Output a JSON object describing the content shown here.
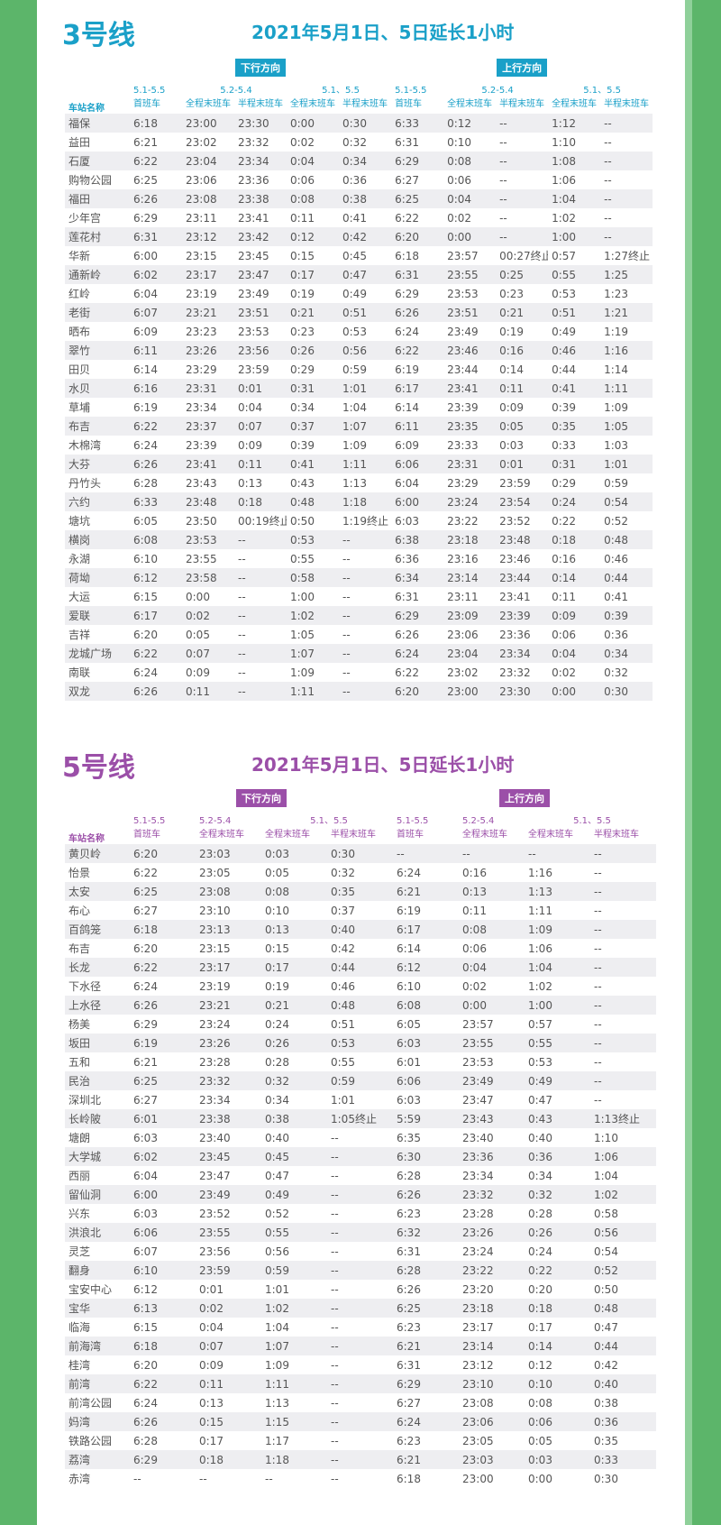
{
  "sections": [
    {
      "title": "3号线",
      "subtitle": "2021年5月1日、5日延长1小时",
      "directions": [
        "下行方向",
        "上行方向"
      ],
      "station_header": "车站名称",
      "periods": [
        "5.1-5.5",
        "5.2-5.4",
        "5.1、5.5",
        "5.1-5.5",
        "5.2-5.4",
        "5.1、5.5"
      ],
      "columns": [
        "首班车",
        "全程末班车",
        "半程末班车",
        "全程末班车",
        "半程末班车",
        "首班车",
        "全程末班车",
        "半程末班车",
        "全程末班车",
        "半程末班车"
      ],
      "rows": [
        [
          "福保",
          "6:18",
          "23:00",
          "23:30",
          "0:00",
          "0:30",
          "6:33",
          "0:12",
          "--",
          "1:12",
          "--"
        ],
        [
          "益田",
          "6:21",
          "23:02",
          "23:32",
          "0:02",
          "0:32",
          "6:31",
          "0:10",
          "--",
          "1:10",
          "--"
        ],
        [
          "石厦",
          "6:22",
          "23:04",
          "23:34",
          "0:04",
          "0:34",
          "6:29",
          "0:08",
          "--",
          "1:08",
          "--"
        ],
        [
          "购物公园",
          "6:25",
          "23:06",
          "23:36",
          "0:06",
          "0:36",
          "6:27",
          "0:06",
          "--",
          "1:06",
          "--"
        ],
        [
          "福田",
          "6:26",
          "23:08",
          "23:38",
          "0:08",
          "0:38",
          "6:25",
          "0:04",
          "--",
          "1:04",
          "--"
        ],
        [
          "少年宫",
          "6:29",
          "23:11",
          "23:41",
          "0:11",
          "0:41",
          "6:22",
          "0:02",
          "--",
          "1:02",
          "--"
        ],
        [
          "莲花村",
          "6:31",
          "23:12",
          "23:42",
          "0:12",
          "0:42",
          "6:20",
          "0:00",
          "--",
          "1:00",
          "--"
        ],
        [
          "华新",
          "6:00",
          "23:15",
          "23:45",
          "0:15",
          "0:45",
          "6:18",
          "23:57",
          "00:27终止",
          "0:57",
          "1:27终止"
        ],
        [
          "通新岭",
          "6:02",
          "23:17",
          "23:47",
          "0:17",
          "0:47",
          "6:31",
          "23:55",
          "0:25",
          "0:55",
          "1:25"
        ],
        [
          "红岭",
          "6:04",
          "23:19",
          "23:49",
          "0:19",
          "0:49",
          "6:29",
          "23:53",
          "0:23",
          "0:53",
          "1:23"
        ],
        [
          "老街",
          "6:07",
          "23:21",
          "23:51",
          "0:21",
          "0:51",
          "6:26",
          "23:51",
          "0:21",
          "0:51",
          "1:21"
        ],
        [
          "晒布",
          "6:09",
          "23:23",
          "23:53",
          "0:23",
          "0:53",
          "6:24",
          "23:49",
          "0:19",
          "0:49",
          "1:19"
        ],
        [
          "翠竹",
          "6:11",
          "23:26",
          "23:56",
          "0:26",
          "0:56",
          "6:22",
          "23:46",
          "0:16",
          "0:46",
          "1:16"
        ],
        [
          "田贝",
          "6:14",
          "23:29",
          "23:59",
          "0:29",
          "0:59",
          "6:19",
          "23:44",
          "0:14",
          "0:44",
          "1:14"
        ],
        [
          "水贝",
          "6:16",
          "23:31",
          "0:01",
          "0:31",
          "1:01",
          "6:17",
          "23:41",
          "0:11",
          "0:41",
          "1:11"
        ],
        [
          "草埔",
          "6:19",
          "23:34",
          "0:04",
          "0:34",
          "1:04",
          "6:14",
          "23:39",
          "0:09",
          "0:39",
          "1:09"
        ],
        [
          "布吉",
          "6:22",
          "23:37",
          "0:07",
          "0:37",
          "1:07",
          "6:11",
          "23:35",
          "0:05",
          "0:35",
          "1:05"
        ],
        [
          "木棉湾",
          "6:24",
          "23:39",
          "0:09",
          "0:39",
          "1:09",
          "6:09",
          "23:33",
          "0:03",
          "0:33",
          "1:03"
        ],
        [
          "大芬",
          "6:26",
          "23:41",
          "0:11",
          "0:41",
          "1:11",
          "6:06",
          "23:31",
          "0:01",
          "0:31",
          "1:01"
        ],
        [
          "丹竹头",
          "6:28",
          "23:43",
          "0:13",
          "0:43",
          "1:13",
          "6:04",
          "23:29",
          "23:59",
          "0:29",
          "0:59"
        ],
        [
          "六约",
          "6:33",
          "23:48",
          "0:18",
          "0:48",
          "1:18",
          "6:00",
          "23:24",
          "23:54",
          "0:24",
          "0:54"
        ],
        [
          "塘坑",
          "6:05",
          "23:50",
          "00:19终止",
          "0:50",
          "1:19终止",
          "6:03",
          "23:22",
          "23:52",
          "0:22",
          "0:52"
        ],
        [
          "横岗",
          "6:08",
          "23:53",
          "--",
          "0:53",
          "--",
          "6:38",
          "23:18",
          "23:48",
          "0:18",
          "0:48"
        ],
        [
          "永湖",
          "6:10",
          "23:55",
          "--",
          "0:55",
          "--",
          "6:36",
          "23:16",
          "23:46",
          "0:16",
          "0:46"
        ],
        [
          "荷坳",
          "6:12",
          "23:58",
          "--",
          "0:58",
          "--",
          "6:34",
          "23:14",
          "23:44",
          "0:14",
          "0:44"
        ],
        [
          "大运",
          "6:15",
          "0:00",
          "--",
          "1:00",
          "--",
          "6:31",
          "23:11",
          "23:41",
          "0:11",
          "0:41"
        ],
        [
          "爱联",
          "6:17",
          "0:02",
          "--",
          "1:02",
          "--",
          "6:29",
          "23:09",
          "23:39",
          "0:09",
          "0:39"
        ],
        [
          "吉祥",
          "6:20",
          "0:05",
          "--",
          "1:05",
          "--",
          "6:26",
          "23:06",
          "23:36",
          "0:06",
          "0:36"
        ],
        [
          "龙城广场",
          "6:22",
          "0:07",
          "--",
          "1:07",
          "--",
          "6:24",
          "23:04",
          "23:34",
          "0:04",
          "0:34"
        ],
        [
          "南联",
          "6:24",
          "0:09",
          "--",
          "1:09",
          "--",
          "6:22",
          "23:02",
          "23:32",
          "0:02",
          "0:32"
        ],
        [
          "双龙",
          "6:26",
          "0:11",
          "--",
          "1:11",
          "--",
          "6:20",
          "23:00",
          "23:30",
          "0:00",
          "0:30"
        ]
      ]
    },
    {
      "title": "5号线",
      "subtitle": "2021年5月1日、5日延长1小时",
      "directions": [
        "下行方向",
        "上行方向"
      ],
      "station_header": "车站名称",
      "periods": [
        "5.1-5.5",
        "5.2-5.4",
        "5.1、5.5",
        "5.1-5.5",
        "5.2-5.4",
        "5.1、5.5"
      ],
      "columns": [
        "首班车",
        "全程末班车",
        "全程末班车",
        "半程末班车",
        "首班车",
        "全程末班车",
        "全程末班车",
        "半程末班车"
      ],
      "rows": [
        [
          "黄贝岭",
          "6:20",
          "23:03",
          "0:03",
          "0:30",
          "--",
          "--",
          "--",
          "--"
        ],
        [
          "怡景",
          "6:22",
          "23:05",
          "0:05",
          "0:32",
          "6:24",
          "0:16",
          "1:16",
          "--"
        ],
        [
          "太安",
          "6:25",
          "23:08",
          "0:08",
          "0:35",
          "6:21",
          "0:13",
          "1:13",
          "--"
        ],
        [
          "布心",
          "6:27",
          "23:10",
          "0:10",
          "0:37",
          "6:19",
          "0:11",
          "1:11",
          "--"
        ],
        [
          "百鸽笼",
          "6:18",
          "23:13",
          "0:13",
          "0:40",
          "6:17",
          "0:08",
          "1:09",
          "--"
        ],
        [
          "布吉",
          "6:20",
          "23:15",
          "0:15",
          "0:42",
          "6:14",
          "0:06",
          "1:06",
          "--"
        ],
        [
          "长龙",
          "6:22",
          "23:17",
          "0:17",
          "0:44",
          "6:12",
          "0:04",
          "1:04",
          "--"
        ],
        [
          "下水径",
          "6:24",
          "23:19",
          "0:19",
          "0:46",
          "6:10",
          "0:02",
          "1:02",
          "--"
        ],
        [
          "上水径",
          "6:26",
          "23:21",
          "0:21",
          "0:48",
          "6:08",
          "0:00",
          "1:00",
          "--"
        ],
        [
          "杨美",
          "6:29",
          "23:24",
          "0:24",
          "0:51",
          "6:05",
          "23:57",
          "0:57",
          "--"
        ],
        [
          "坂田",
          "6:19",
          "23:26",
          "0:26",
          "0:53",
          "6:03",
          "23:55",
          "0:55",
          "--"
        ],
        [
          "五和",
          "6:21",
          "23:28",
          "0:28",
          "0:55",
          "6:01",
          "23:53",
          "0:53",
          "--"
        ],
        [
          "民治",
          "6:25",
          "23:32",
          "0:32",
          "0:59",
          "6:06",
          "23:49",
          "0:49",
          "--"
        ],
        [
          "深圳北",
          "6:27",
          "23:34",
          "0:34",
          "1:01",
          "6:03",
          "23:47",
          "0:47",
          "--"
        ],
        [
          "长岭陂",
          "6:01",
          "23:38",
          "0:38",
          "1:05终止",
          "5:59",
          "23:43",
          "0:43",
          "1:13终止"
        ],
        [
          "塘朗",
          "6:03",
          "23:40",
          "0:40",
          "--",
          "6:35",
          "23:40",
          "0:40",
          "1:10"
        ],
        [
          "大学城",
          "6:02",
          "23:45",
          "0:45",
          "--",
          "6:30",
          "23:36",
          "0:36",
          "1:06"
        ],
        [
          "西丽",
          "6:04",
          "23:47",
          "0:47",
          "--",
          "6:28",
          "23:34",
          "0:34",
          "1:04"
        ],
        [
          "留仙洞",
          "6:00",
          "23:49",
          "0:49",
          "--",
          "6:26",
          "23:32",
          "0:32",
          "1:02"
        ],
        [
          "兴东",
          "6:03",
          "23:52",
          "0:52",
          "--",
          "6:23",
          "23:28",
          "0:28",
          "0:58"
        ],
        [
          "洪浪北",
          "6:06",
          "23:55",
          "0:55",
          "--",
          "6:32",
          "23:26",
          "0:26",
          "0:56"
        ],
        [
          "灵芝",
          "6:07",
          "23:56",
          "0:56",
          "--",
          "6:31",
          "23:24",
          "0:24",
          "0:54"
        ],
        [
          "翻身",
          "6:10",
          "23:59",
          "0:59",
          "--",
          "6:28",
          "23:22",
          "0:22",
          "0:52"
        ],
        [
          "宝安中心",
          "6:12",
          "0:01",
          "1:01",
          "--",
          "6:26",
          "23:20",
          "0:20",
          "0:50"
        ],
        [
          "宝华",
          "6:13",
          "0:02",
          "1:02",
          "--",
          "6:25",
          "23:18",
          "0:18",
          "0:48"
        ],
        [
          "临海",
          "6:15",
          "0:04",
          "1:04",
          "--",
          "6:23",
          "23:17",
          "0:17",
          "0:47"
        ],
        [
          "前海湾",
          "6:18",
          "0:07",
          "1:07",
          "--",
          "6:21",
          "23:14",
          "0:14",
          "0:44"
        ],
        [
          "桂湾",
          "6:20",
          "0:09",
          "1:09",
          "--",
          "6:31",
          "23:12",
          "0:12",
          "0:42"
        ],
        [
          "前湾",
          "6:22",
          "0:11",
          "1:11",
          "--",
          "6:29",
          "23:10",
          "0:10",
          "0:40"
        ],
        [
          "前湾公园",
          "6:24",
          "0:13",
          "1:13",
          "--",
          "6:27",
          "23:08",
          "0:08",
          "0:38"
        ],
        [
          "妈湾",
          "6:26",
          "0:15",
          "1:15",
          "--",
          "6:24",
          "23:06",
          "0:06",
          "0:36"
        ],
        [
          "铁路公园",
          "6:28",
          "0:17",
          "1:17",
          "--",
          "6:23",
          "23:05",
          "0:05",
          "0:35"
        ],
        [
          "荔湾",
          "6:29",
          "0:18",
          "1:18",
          "--",
          "6:21",
          "23:03",
          "0:03",
          "0:33"
        ],
        [
          "赤湾",
          "--",
          "--",
          "--",
          "--",
          "6:18",
          "23:00",
          "0:00",
          "0:30"
        ]
      ]
    }
  ]
}
